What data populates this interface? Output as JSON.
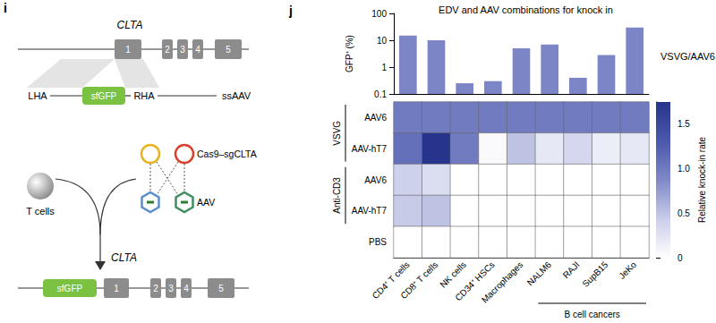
{
  "panel_labels": [
    "i",
    "j"
  ],
  "diagram": {
    "gene": "CLTA",
    "exons": [
      "1",
      "2",
      "3",
      "4",
      "5"
    ],
    "donor": {
      "left_arm": "LHA",
      "insert": "sfGFP",
      "right_arm": "RHA",
      "vector": "ssAAV"
    },
    "cells": "T cells",
    "edv": "Cas9–sgCLTA",
    "aav": "AAV",
    "product": {
      "gene": "CLTA",
      "insert": "sfGFP",
      "exons": [
        "1",
        "2",
        "3",
        "4",
        "5"
      ]
    }
  },
  "chart_data": [
    {
      "type": "bar",
      "title": "EDV and AAV combinations for knock in",
      "categories": [
        "CD4⁺ T cells",
        "CD8⁺ T cells",
        "NK cells",
        "CD34⁺ HSCs",
        "Macrophages",
        "NALM6",
        "RAJI",
        "SupB15",
        "JeKo"
      ],
      "series": [
        {
          "name": "VSVG/AAV6",
          "color": "#7c85c5",
          "values": [
            15,
            10,
            0.25,
            0.3,
            5,
            7,
            0.4,
            2.8,
            30
          ]
        }
      ],
      "ylabel": "GFP⁺ (%)",
      "ylim": [
        0.1,
        100
      ],
      "yticks": [
        0.1,
        1,
        10,
        100
      ],
      "log": "y",
      "tick_labels": "y"
    },
    {
      "type": "heatmap",
      "categories": [
        "CD4⁺ T cells",
        "CD8⁺ T cells",
        "NK cells",
        "CD34⁺ HSCs",
        "Macrophages",
        "NALM6",
        "RAJI",
        "SupB15",
        "JeKo"
      ],
      "rows": [
        {
          "group": "VSVG",
          "label": "AAV6",
          "values": [
            1,
            1,
            1,
            1,
            1,
            1,
            1,
            1,
            1
          ]
        },
        {
          "group": "VSVG",
          "label": "AAV-hT7",
          "values": [
            1.1,
            1.75,
            1,
            0.05,
            0.5,
            0.2,
            0.35,
            0.15,
            0.2
          ]
        },
        {
          "group": "Anti-CD3",
          "label": "AAV6",
          "values": [
            0.4,
            0.3,
            0,
            0,
            0,
            0,
            0,
            0,
            0
          ]
        },
        {
          "group": "Anti-CD3",
          "label": "AAV-hT7",
          "values": [
            0.45,
            0.5,
            0,
            0,
            0,
            0,
            0,
            0,
            0
          ]
        },
        {
          "label": "PBS",
          "values": [
            0,
            0,
            0,
            0,
            0,
            0,
            0,
            0,
            0
          ]
        }
      ],
      "column_groups": [
        {
          "label": "B cell cancers",
          "from": "NALM6",
          "to": "JeKo"
        }
      ],
      "colorbar": {
        "label": "Relative knock-in rate",
        "range": [
          0,
          1.75
        ],
        "ticks": [
          0,
          0.5,
          {
            "value": 1,
            "label": "1.0"
          },
          1.5
        ]
      }
    }
  ]
}
